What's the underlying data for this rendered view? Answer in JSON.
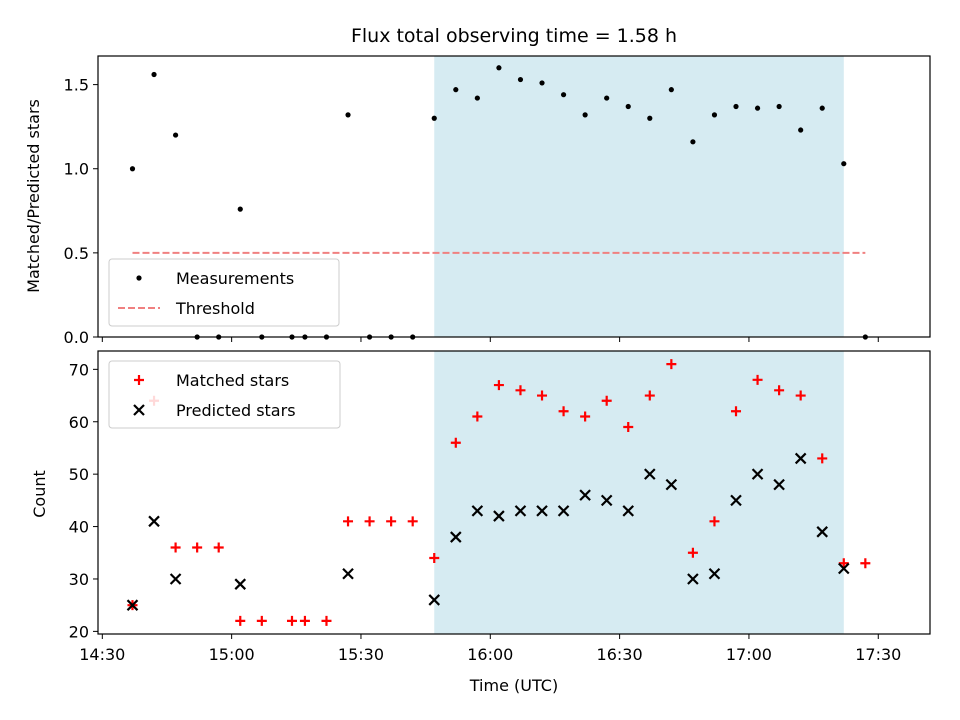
{
  "chart_data": {
    "type": "scatter",
    "title": "Flux total observing time = 1.58 h",
    "xlabel": "Time (UTC)",
    "x_ticks": [
      "14:30",
      "15:00",
      "15:30",
      "16:00",
      "16:30",
      "17:00",
      "17:30"
    ],
    "x_tick_minutes": [
      870,
      900,
      930,
      960,
      990,
      1020,
      1050
    ],
    "xlim_minutes": [
      869,
      1062
    ],
    "highlight_span_minutes": [
      947,
      1042
    ],
    "colors": {
      "highlight": "#add8e6",
      "measurements": "#000000",
      "threshold": "#f08080",
      "matched": "#ff0000",
      "predicted": "#000000"
    },
    "panels": [
      {
        "ylabel": "Matched/Predicted stars",
        "ylim": [
          0,
          1.67
        ],
        "y_ticks": [
          "0.0",
          "0.5",
          "1.0",
          "1.5"
        ],
        "y_tick_values": [
          0,
          0.5,
          1.0,
          1.5
        ],
        "legend": [
          "Measurements",
          "Threshold"
        ],
        "legend_position": "lower-left",
        "series": [
          {
            "name": "Measurements",
            "marker": "dot",
            "points": [
              [
                877,
                1.0
              ],
              [
                882,
                1.56
              ],
              [
                887,
                1.2
              ],
              [
                892,
                0.0
              ],
              [
                897,
                0.0
              ],
              [
                902,
                0.76
              ],
              [
                907,
                0.0
              ],
              [
                914,
                0.0
              ],
              [
                917,
                0.0
              ],
              [
                922,
                0.0
              ],
              [
                927,
                1.32
              ],
              [
                932,
                0.0
              ],
              [
                937,
                0.0
              ],
              [
                942,
                0.0
              ],
              [
                947,
                1.3
              ],
              [
                952,
                1.47
              ],
              [
                957,
                1.42
              ],
              [
                962,
                1.6
              ],
              [
                967,
                1.53
              ],
              [
                972,
                1.51
              ],
              [
                977,
                1.44
              ],
              [
                982,
                1.32
              ],
              [
                987,
                1.42
              ],
              [
                992,
                1.37
              ],
              [
                997,
                1.3
              ],
              [
                1002,
                1.47
              ],
              [
                1007,
                1.16
              ],
              [
                1012,
                1.32
              ],
              [
                1017,
                1.37
              ],
              [
                1022,
                1.36
              ],
              [
                1027,
                1.37
              ],
              [
                1032,
                1.23
              ],
              [
                1037,
                1.36
              ],
              [
                1042,
                1.03
              ],
              [
                1047,
                0.0
              ]
            ]
          },
          {
            "name": "Threshold",
            "marker": "dashed-line",
            "x_range": [
              877,
              1047
            ],
            "y": 0.5
          }
        ]
      },
      {
        "ylabel": "Count",
        "ylim": [
          19.5,
          73.5
        ],
        "y_ticks": [
          "20",
          "30",
          "40",
          "50",
          "60",
          "70"
        ],
        "y_tick_values": [
          20,
          30,
          40,
          50,
          60,
          70
        ],
        "legend": [
          "Matched stars",
          "Predicted stars"
        ],
        "legend_position": "upper-left",
        "series": [
          {
            "name": "Matched stars",
            "marker": "plus",
            "points": [
              [
                877,
                25
              ],
              [
                882,
                64
              ],
              [
                887,
                36
              ],
              [
                892,
                36
              ],
              [
                897,
                36
              ],
              [
                902,
                22
              ],
              [
                907,
                22
              ],
              [
                914,
                22
              ],
              [
                917,
                22
              ],
              [
                922,
                22
              ],
              [
                927,
                41
              ],
              [
                932,
                41
              ],
              [
                937,
                41
              ],
              [
                942,
                41
              ],
              [
                947,
                34
              ],
              [
                952,
                56
              ],
              [
                957,
                61
              ],
              [
                962,
                67
              ],
              [
                967,
                66
              ],
              [
                972,
                65
              ],
              [
                977,
                62
              ],
              [
                982,
                61
              ],
              [
                987,
                64
              ],
              [
                992,
                59
              ],
              [
                997,
                65
              ],
              [
                1002,
                71
              ],
              [
                1007,
                35
              ],
              [
                1012,
                41
              ],
              [
                1017,
                62
              ],
              [
                1022,
                68
              ],
              [
                1027,
                66
              ],
              [
                1032,
                65
              ],
              [
                1037,
                53
              ],
              [
                1042,
                33
              ],
              [
                1047,
                33
              ]
            ]
          },
          {
            "name": "Predicted stars",
            "marker": "x",
            "points": [
              [
                877,
                25
              ],
              [
                882,
                41
              ],
              [
                887,
                30
              ],
              [
                902,
                29
              ],
              [
                927,
                31
              ],
              [
                947,
                26
              ],
              [
                952,
                38
              ],
              [
                957,
                43
              ],
              [
                962,
                42
              ],
              [
                967,
                43
              ],
              [
                972,
                43
              ],
              [
                977,
                43
              ],
              [
                982,
                46
              ],
              [
                987,
                45
              ],
              [
                992,
                43
              ],
              [
                997,
                50
              ],
              [
                1002,
                48
              ],
              [
                1007,
                30
              ],
              [
                1012,
                31
              ],
              [
                1017,
                45
              ],
              [
                1022,
                50
              ],
              [
                1027,
                48
              ],
              [
                1032,
                53
              ],
              [
                1037,
                39
              ],
              [
                1042,
                32
              ]
            ]
          }
        ]
      }
    ]
  }
}
